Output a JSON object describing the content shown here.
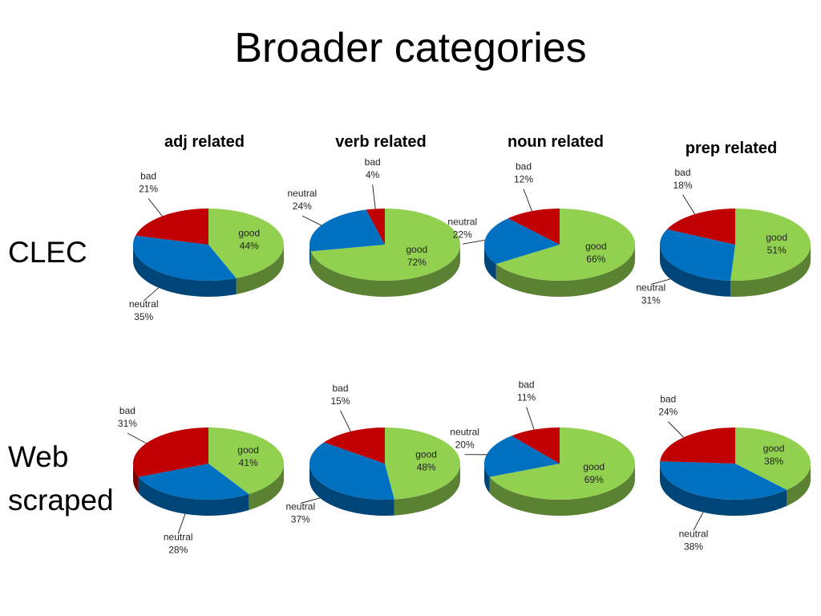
{
  "title": "Broader categories",
  "columns": [
    "adj related",
    "verb related",
    "noun related",
    "prep related"
  ],
  "rows": [
    "CLEC",
    "Web scraped"
  ],
  "chart_data": [
    {
      "type": "pie",
      "categories": [
        "good",
        "neutral",
        "bad"
      ],
      "values": [
        44,
        35,
        21
      ],
      "value_labels": [
        "44%",
        "35%",
        "21%"
      ],
      "colors": [
        "#92d050",
        "#0070c0",
        "#c00000"
      ]
    },
    {
      "type": "pie",
      "categories": [
        "good",
        "neutral",
        "bad"
      ],
      "values": [
        72,
        24,
        4
      ],
      "value_labels": [
        "72%",
        "24%",
        "4%"
      ],
      "colors": [
        "#92d050",
        "#0070c0",
        "#c00000"
      ]
    },
    {
      "type": "pie",
      "categories": [
        "good",
        "neutral",
        "bad"
      ],
      "values": [
        66,
        22,
        12
      ],
      "value_labels": [
        "66%",
        "22%",
        "12%"
      ],
      "colors": [
        "#92d050",
        "#0070c0",
        "#c00000"
      ]
    },
    {
      "type": "pie",
      "categories": [
        "good",
        "neutral",
        "bad"
      ],
      "values": [
        51,
        31,
        18
      ],
      "value_labels": [
        "51%",
        "31%",
        "18%"
      ],
      "colors": [
        "#92d050",
        "#0070c0",
        "#c00000"
      ]
    },
    {
      "type": "pie",
      "categories": [
        "good",
        "neutral",
        "bad"
      ],
      "values": [
        41,
        28,
        31
      ],
      "value_labels": [
        "41%",
        "28%",
        "31%"
      ],
      "colors": [
        "#92d050",
        "#0070c0",
        "#c00000"
      ]
    },
    {
      "type": "pie",
      "categories": [
        "good",
        "neutral",
        "bad"
      ],
      "values": [
        48,
        37,
        15
      ],
      "value_labels": [
        "48%",
        "37%",
        "15%"
      ],
      "colors": [
        "#92d050",
        "#0070c0",
        "#c00000"
      ]
    },
    {
      "type": "pie",
      "categories": [
        "good",
        "neutral",
        "bad"
      ],
      "values": [
        69,
        20,
        11
      ],
      "value_labels": [
        "69%",
        "20%",
        "11%"
      ],
      "colors": [
        "#92d050",
        "#0070c0",
        "#c00000"
      ]
    },
    {
      "type": "pie",
      "categories": [
        "good",
        "neutral",
        "bad"
      ],
      "values": [
        38,
        38,
        24
      ],
      "value_labels": [
        "38%",
        "38%",
        "24%"
      ],
      "colors": [
        "#92d050",
        "#0070c0",
        "#c00000"
      ]
    }
  ]
}
